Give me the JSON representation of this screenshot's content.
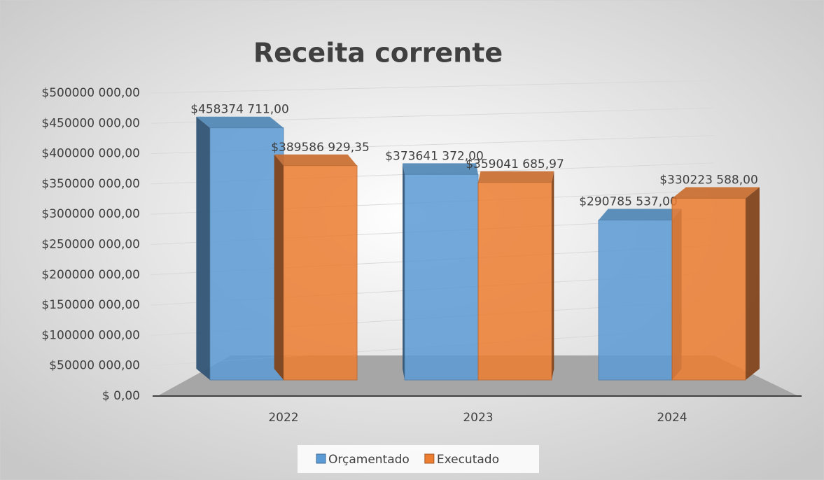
{
  "chart_data": {
    "type": "bar3d",
    "title": "Receita corrente",
    "categories": [
      "2022",
      "2023",
      "2024"
    ],
    "series": [
      {
        "name": "Orçamentado",
        "color": "#5b9bd5",
        "values": [
          458374711.0,
          373641372.0,
          290785537.0
        ],
        "value_labels": [
          "$458374 711,00",
          "$373641 372,00",
          "$290785 537,00"
        ]
      },
      {
        "name": "Executado",
        "color": "#ed7d31",
        "values": [
          389586929.35,
          359041685.97,
          330223588.0
        ],
        "value_labels": [
          "$389586 929,35",
          "$359041 685,97",
          "$330223 588,00"
        ]
      }
    ],
    "ylim": [
      0,
      500000000
    ],
    "yticks": [
      {
        "value": 0,
        "label": "$ 0,00"
      },
      {
        "value": 50000000,
        "label": "$50000 000,00"
      },
      {
        "value": 100000000,
        "label": "$100000 000,00"
      },
      {
        "value": 150000000,
        "label": "$150000 000,00"
      },
      {
        "value": 200000000,
        "label": "$200000 000,00"
      },
      {
        "value": 250000000,
        "label": "$250000 000,00"
      },
      {
        "value": 300000000,
        "label": "$300000 000,00"
      },
      {
        "value": 350000000,
        "label": "$350000 000,00"
      },
      {
        "value": 400000000,
        "label": "$400000 000,00"
      },
      {
        "value": 450000000,
        "label": "$450000 000,00"
      },
      {
        "value": 500000000,
        "label": "$500000 000,00"
      }
    ],
    "grid": true,
    "legend": "bottom"
  }
}
